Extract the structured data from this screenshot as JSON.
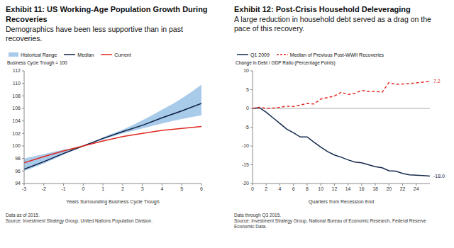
{
  "chart_data": [
    {
      "type": "line",
      "title": "Exhibit 11: US Working-Age Population Growth During Recoveries",
      "subtitle": "Demographics have been less supportive than in past recoveries.",
      "y_label": "Business Cycle Trough = 100",
      "x_label": "Years Surrounding Business Cycle Trough",
      "x": [
        -3,
        -2,
        -1,
        0,
        1,
        2,
        3,
        4,
        5,
        6
      ],
      "xlim": [
        -3,
        6
      ],
      "xticks": [
        -3,
        -2,
        -1,
        0,
        1,
        2,
        3,
        4,
        5,
        6
      ],
      "ylim": [
        94,
        112
      ],
      "yticks": [
        94,
        96,
        98,
        100,
        102,
        104,
        106,
        108,
        110,
        112
      ],
      "grid": false,
      "legend": "top left",
      "series": [
        {
          "name": "Historical Range",
          "type": "range",
          "color": "#a9cbea",
          "values": [
            [
              96.0,
              98.0
            ],
            [
              97.2,
              98.7
            ],
            [
              98.6,
              99.4
            ],
            [
              100,
              100
            ],
            [
              101.0,
              101.4
            ],
            [
              102.0,
              102.6
            ],
            [
              102.8,
              104.1
            ],
            [
              103.6,
              105.8
            ],
            [
              104.3,
              107.6
            ],
            [
              104.9,
              109.8
            ]
          ]
        },
        {
          "name": "Median",
          "type": "line",
          "color": "#0d1f44",
          "values": [
            96.3,
            97.5,
            98.8,
            100,
            101.2,
            102.3,
            103.3,
            104.5,
            105.6,
            106.8
          ]
        },
        {
          "name": "Current",
          "type": "line",
          "color": "#e0281f",
          "values": [
            97.3,
            98.3,
            99.2,
            100,
            100.8,
            101.5,
            102.0,
            102.5,
            102.8,
            103.1
          ]
        }
      ],
      "footnotes": [
        "Data as of 2015.",
        "Source: Investment Strategy Group, United Nations Population Division."
      ]
    },
    {
      "type": "line",
      "title": "Exhibit 12: Post-Crisis Household Deleveraging",
      "subtitle": "A large reduction in household debt served as a drag on the pace of this recovery.",
      "y_label": "Change in Debt / GDP Ratio (Percentage Points)",
      "x_label": "Quarters from Recession End",
      "x": [
        0,
        1,
        2,
        3,
        4,
        5,
        6,
        7,
        8,
        9,
        10,
        11,
        12,
        13,
        14,
        15,
        16,
        17,
        18,
        19,
        20,
        21,
        22,
        23,
        24,
        25,
        26
      ],
      "xlim": [
        0,
        26
      ],
      "xticks": [
        0,
        2,
        4,
        6,
        8,
        10,
        12,
        14,
        16,
        18,
        20,
        22,
        24
      ],
      "ylim": [
        -20,
        10
      ],
      "yticks": [
        -20,
        -15,
        -10,
        -5,
        0,
        5,
        10
      ],
      "baseline": 0,
      "grid": false,
      "legend": "top left",
      "series": [
        {
          "name": "Q1 2009",
          "type": "line",
          "color": "#14284b",
          "line_style": "solid",
          "values": [
            0,
            0.2,
            -1,
            -2.5,
            -4,
            -5.5,
            -6.5,
            -7.6,
            -7.6,
            -9,
            -10.3,
            -11.5,
            -12.4,
            -13,
            -13.7,
            -14.3,
            -14.5,
            -15,
            -15.5,
            -15.8,
            -16.6,
            -16.7,
            -17.3,
            -17.7,
            -17.8,
            -17.9,
            -18
          ]
        },
        {
          "name": "Median of Previous Post-WWII Recoveries",
          "type": "line",
          "color": "#e0281f",
          "line_style": "dashed",
          "values": [
            0,
            0.3,
            0,
            0.1,
            0.3,
            0.6,
            0.5,
            0.9,
            1.3,
            1.2,
            2.5,
            2.9,
            3.3,
            4.3,
            3.7,
            4,
            4.8,
            4.5,
            4.6,
            4.3,
            6.9,
            6.4,
            6.5,
            6.6,
            6.8,
            7,
            7.2
          ]
        }
      ],
      "annotations": [
        {
          "text": "7.2",
          "x": 26,
          "y": 7.2,
          "series": "Median of Previous Post-WWII Recoveries"
        },
        {
          "text": "-18.0",
          "x": 26,
          "y": -18,
          "series": "Q1 2009"
        }
      ],
      "footnotes": [
        "Data through Q3 2015.",
        "Source: Investment Strategy Group, National Bureau of Economic Research, Federal Reserve Economic Data."
      ]
    }
  ]
}
